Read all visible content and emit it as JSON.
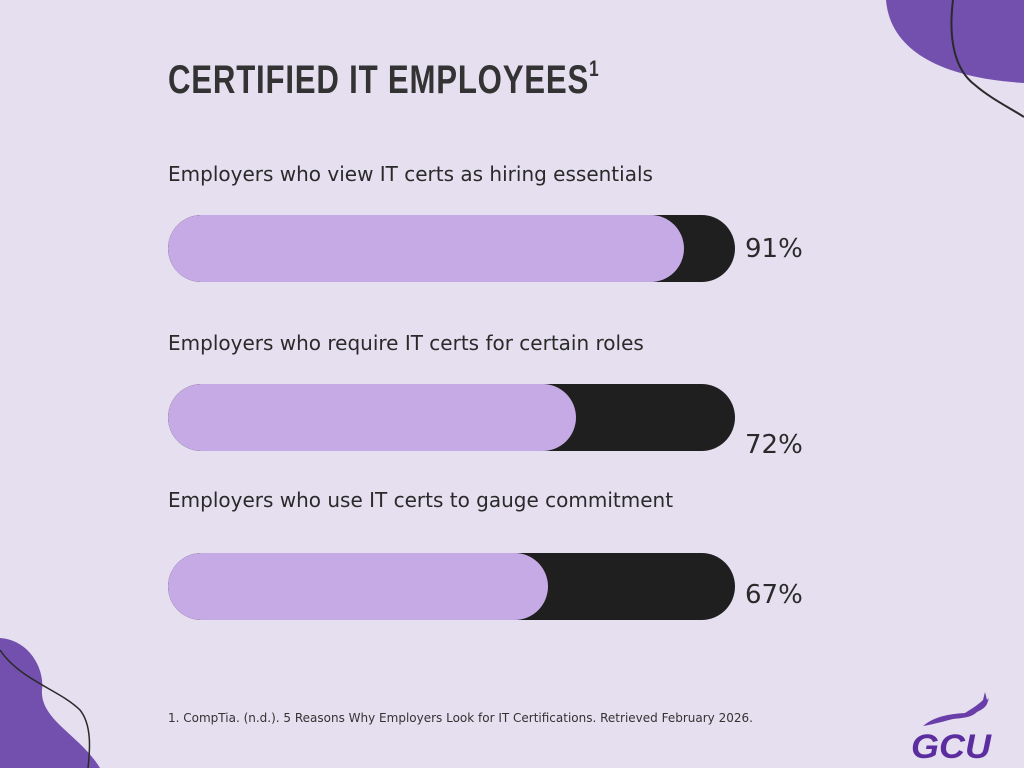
{
  "title": "CERTIFIED IT EMPLOYEES",
  "title_superscript": "1",
  "chart_data": {
    "type": "bar",
    "orientation": "horizontal",
    "categories": [
      "Employers who view IT certs as hiring essentials",
      "Employers who require IT certs for certain roles",
      "Employers who use IT certs to gauge commitment"
    ],
    "values": [
      91,
      72,
      67
    ],
    "value_labels": [
      "91%",
      "72%",
      "67%"
    ],
    "xlim": [
      0,
      100
    ]
  },
  "footnote": "1. CompTia. (n.d.). 5 Reasons Why Employers Look for IT Certifications. Retrieved February 2026.",
  "logo_text": "GCU",
  "colors": {
    "background": "#e5dff0",
    "accent": "#7350ae",
    "bar_fill": "#c5aae6",
    "bar_track": "#1f1f1f"
  }
}
